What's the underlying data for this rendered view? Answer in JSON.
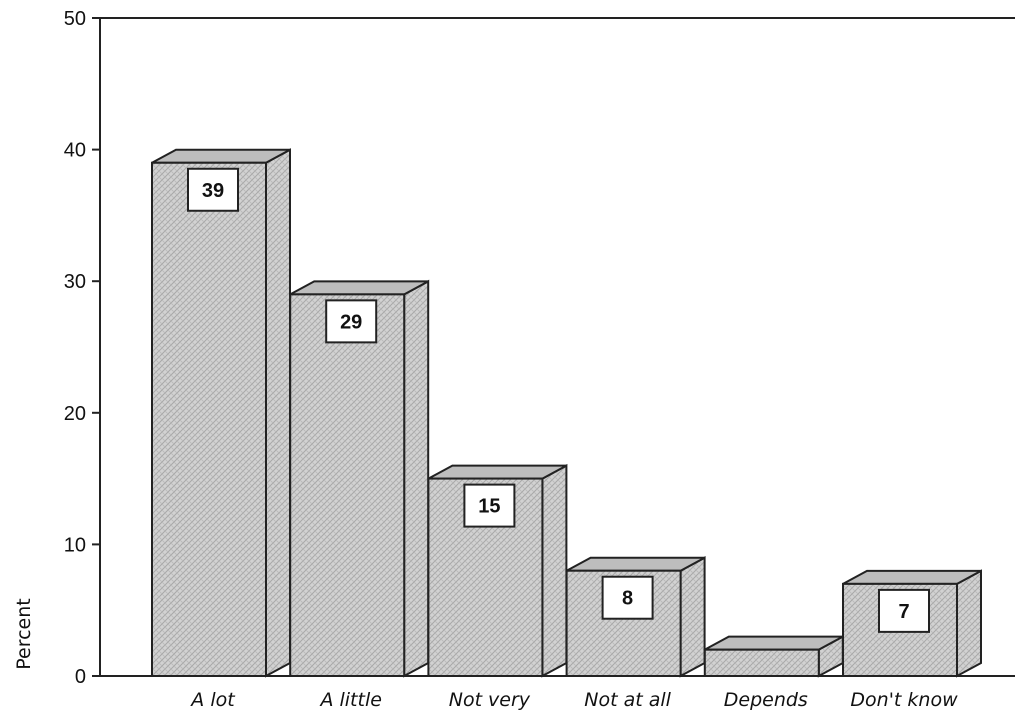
{
  "chart_data": {
    "type": "bar",
    "categories": [
      "A lot",
      "A little",
      "Not very",
      "Not at all",
      "Depends",
      "Don't know"
    ],
    "values": [
      39,
      29,
      15,
      8,
      2,
      7
    ],
    "data_labels": [
      "39",
      "29",
      "15",
      "8",
      "",
      "7"
    ],
    "title": "",
    "xlabel": "",
    "ylabel": "Percent",
    "ylim": [
      0,
      50
    ],
    "yticks": [
      0,
      10,
      20,
      30,
      40,
      50
    ],
    "grid": false,
    "style": "3d-hatched",
    "colors": {
      "bar_front": "#cfcfcf",
      "bar_top": "#bdbdbd",
      "bar_side": "#d8d8d8",
      "outline": "#222222"
    }
  }
}
